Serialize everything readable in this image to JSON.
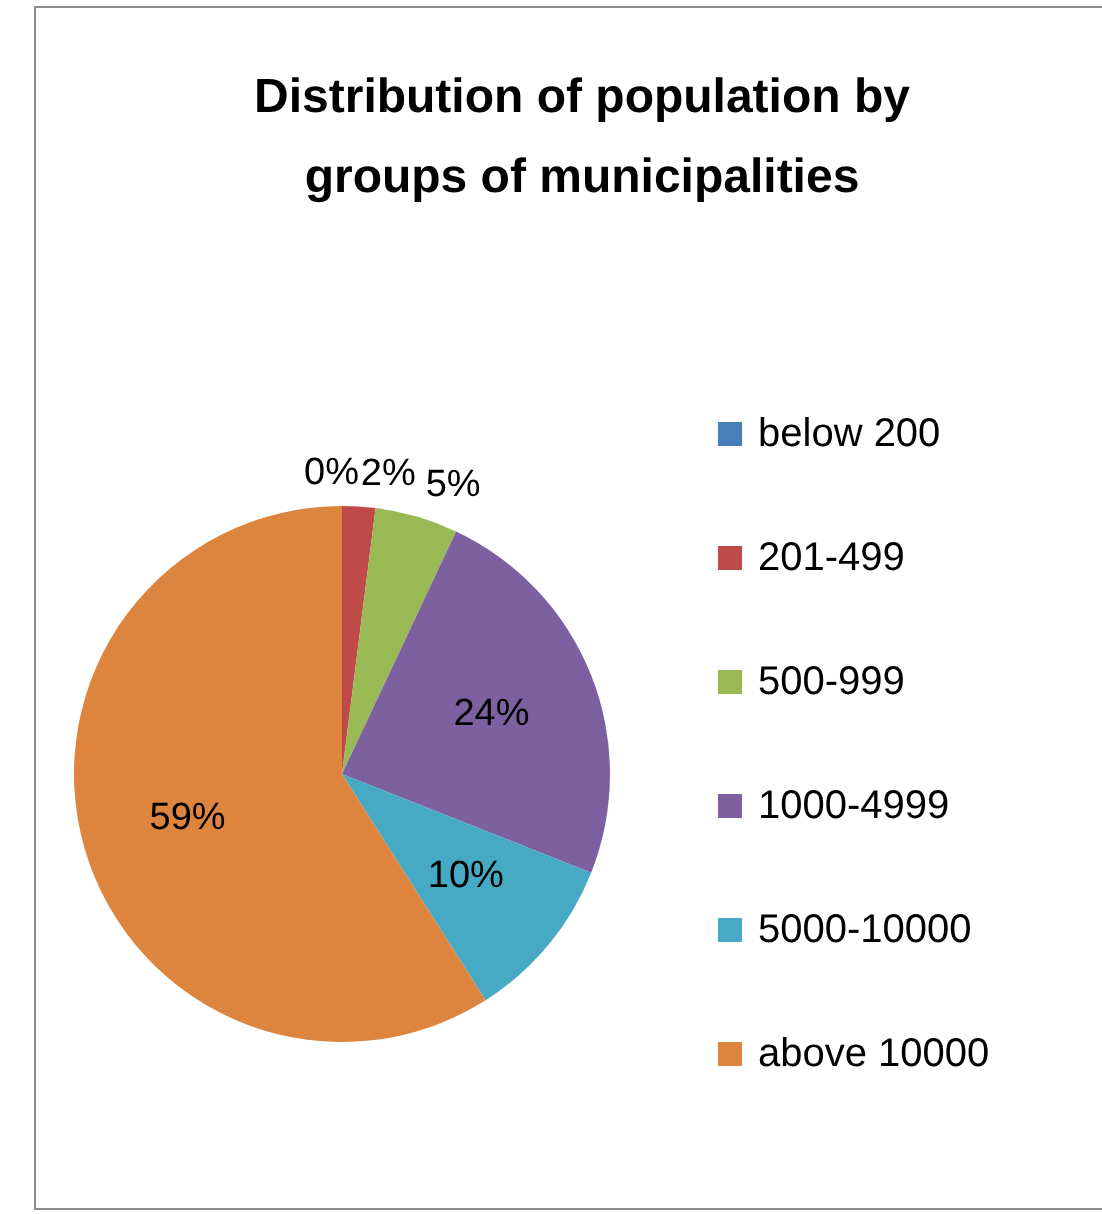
{
  "chart_data": {
    "type": "pie",
    "title": "Distribution of population by groups of municipalities",
    "categories": [
      "below 200",
      "201-499",
      "500-999",
      "1000-4999",
      "5000-10000",
      "above 10000"
    ],
    "values": [
      0,
      2,
      5,
      24,
      10,
      59
    ],
    "colors": [
      "#4a7ebb",
      "#be4b48",
      "#98b954",
      "#7d60a0",
      "#46aac5",
      "#dd853e"
    ],
    "value_labels": [
      "0%",
      "2%",
      "5%",
      "24%",
      "10%",
      "59%"
    ],
    "legend": "right"
  }
}
